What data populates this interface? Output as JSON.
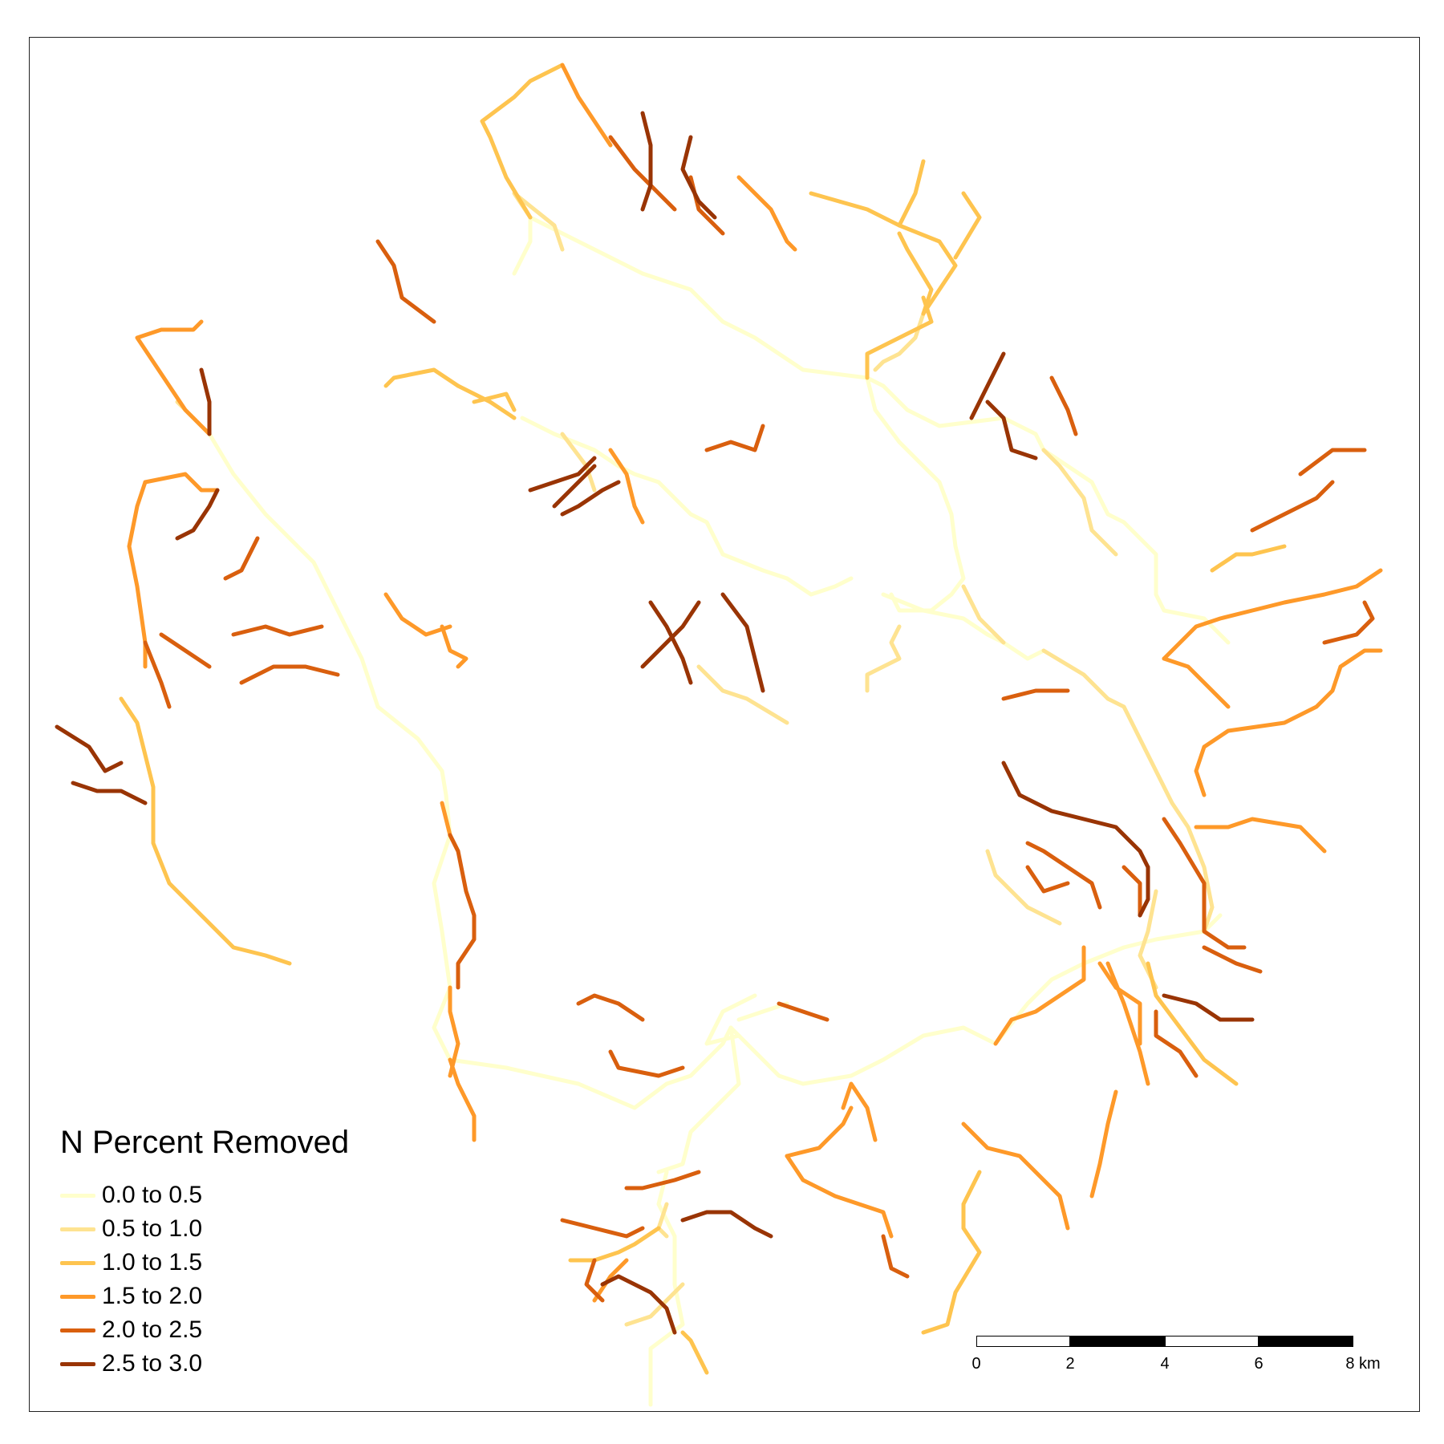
{
  "legend": {
    "title": "N Percent Removed",
    "classes": [
      {
        "label": "0.0 to 0.5",
        "color": "#ffffcc"
      },
      {
        "label": "0.5 to 1.0",
        "color": "#fee391"
      },
      {
        "label": "1.0 to 1.5",
        "color": "#fec44f"
      },
      {
        "label": "1.5 to 2.0",
        "color": "#fe9929"
      },
      {
        "label": "2.0 to 2.5",
        "color": "#d95f0e"
      },
      {
        "label": "2.5 to 3.0",
        "color": "#993404"
      }
    ]
  },
  "scale_bar": {
    "ticks": [
      "0",
      "2",
      "4",
      "6",
      "8 km"
    ]
  }
}
